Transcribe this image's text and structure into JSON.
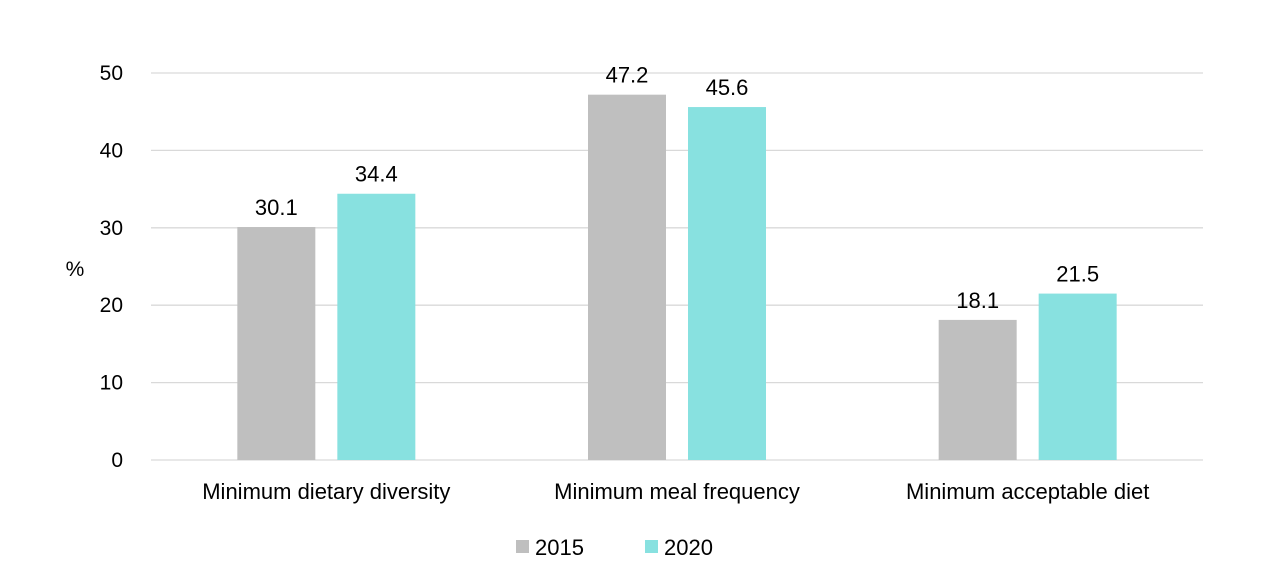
{
  "chart_data": {
    "type": "bar",
    "title": "",
    "xlabel": "",
    "ylabel": "%",
    "ylim": [
      0,
      50
    ],
    "yticks": [
      0,
      10,
      20,
      30,
      40,
      50
    ],
    "grid": true,
    "legend_position": "bottom",
    "categories": [
      "Minimum dietary diversity",
      "Minimum meal frequency",
      "Minimum acceptable diet"
    ],
    "series": [
      {
        "name": "2015",
        "color": "#bfbfbf",
        "values": [
          30.1,
          47.2,
          18.1
        ]
      },
      {
        "name": "2020",
        "color": "#88e1e0",
        "values": [
          34.4,
          45.6,
          21.5
        ]
      }
    ]
  }
}
